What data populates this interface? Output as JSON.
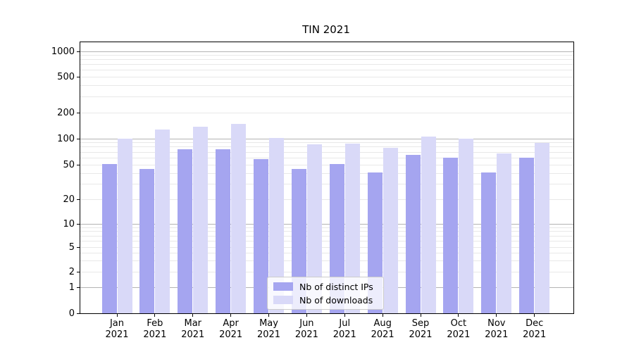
{
  "chart_data": {
    "type": "bar",
    "title": "TIN 2021",
    "x_months": [
      "Jan",
      "Feb",
      "Mar",
      "Apr",
      "May",
      "Jun",
      "Jul",
      "Aug",
      "Sep",
      "Oct",
      "Nov",
      "Dec"
    ],
    "x_year": "2021",
    "yticks": [
      0,
      1,
      2,
      5,
      10,
      20,
      50,
      100,
      200,
      500,
      1000
    ],
    "yscale": "log-like with 0 baseline",
    "ylim": [
      0,
      1300
    ],
    "grid": true,
    "legend_position": "inside-bottom-center",
    "series": [
      {
        "name": "Nb of distinct IPs",
        "color": "#a5a5f0",
        "values": [
          51,
          45,
          75,
          75,
          58,
          45,
          51,
          41,
          65,
          60,
          41,
          60
        ]
      },
      {
        "name": "Nb of downloads",
        "color": "#d9d9f8",
        "values": [
          100,
          127,
          137,
          148,
          101,
          86,
          88,
          79,
          106,
          100,
          68,
          90
        ]
      }
    ]
  }
}
